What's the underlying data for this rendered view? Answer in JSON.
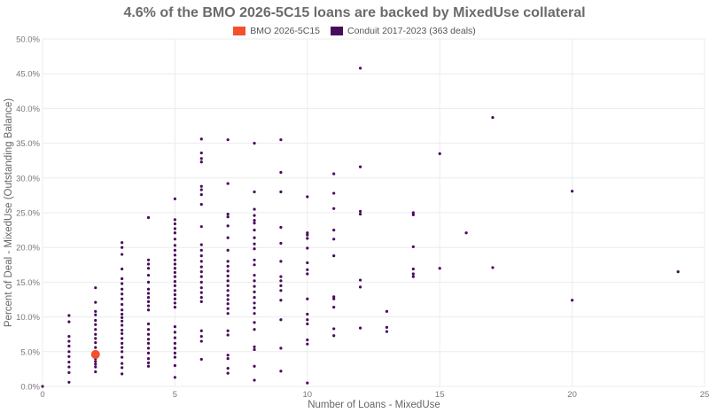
{
  "chart_data": {
    "type": "scatter",
    "title": "4.6% of the BMO 2026-5C15 loans are backed by MixedUse collateral",
    "xlabel": "Number of Loans - MixedUse",
    "ylabel": "Percent of Deal - MixedUse (Outstanding Balance)",
    "xlim": [
      0,
      25
    ],
    "ylim": [
      0,
      50
    ],
    "x_ticks": [
      0,
      5,
      10,
      15,
      20,
      25
    ],
    "x_tick_labels": [
      "0",
      "5",
      "10",
      "15",
      "20",
      "25"
    ],
    "y_ticks": [
      0,
      5,
      10,
      15,
      20,
      25,
      30,
      35,
      40,
      45,
      50
    ],
    "y_tick_labels": [
      "0.0%",
      "5.0%",
      "10.0%",
      "15.0%",
      "20.0%",
      "25.0%",
      "30.0%",
      "35.0%",
      "40.0%",
      "45.0%",
      "50.0%"
    ],
    "grid": true,
    "legend_position": "top-center",
    "series": [
      {
        "name": "BMO 2026-5C15",
        "color": "#f4502e",
        "points": [
          [
            2,
            4.6
          ]
        ]
      },
      {
        "name": "Conduit 2017-2023 (363 deals)",
        "color": "#4a0a5c",
        "points": [
          [
            0,
            0
          ],
          [
            1,
            0.6
          ],
          [
            1,
            2.0
          ],
          [
            1,
            2.8
          ],
          [
            1,
            3.5
          ],
          [
            1,
            4.3
          ],
          [
            1,
            5.0
          ],
          [
            1,
            5.8
          ],
          [
            1,
            6.5
          ],
          [
            1,
            7.2
          ],
          [
            1,
            9.3
          ],
          [
            1,
            10.2
          ],
          [
            2,
            2.1
          ],
          [
            2,
            2.8
          ],
          [
            2,
            3.2
          ],
          [
            2,
            3.6
          ],
          [
            2,
            4.0
          ],
          [
            2,
            5.0
          ],
          [
            2,
            5.6
          ],
          [
            2,
            6.3
          ],
          [
            2,
            6.9
          ],
          [
            2,
            7.5
          ],
          [
            2,
            8.2
          ],
          [
            2,
            8.9
          ],
          [
            2,
            9.5
          ],
          [
            2,
            10.3
          ],
          [
            2,
            10.8
          ],
          [
            2,
            12.1
          ],
          [
            2,
            14.2
          ],
          [
            3,
            1.8
          ],
          [
            3,
            2.7
          ],
          [
            3,
            3.3
          ],
          [
            3,
            4.2
          ],
          [
            3,
            5.0
          ],
          [
            3,
            5.6
          ],
          [
            3,
            6.2
          ],
          [
            3,
            6.9
          ],
          [
            3,
            7.6
          ],
          [
            3,
            8.1
          ],
          [
            3,
            8.8
          ],
          [
            3,
            9.4
          ],
          [
            3,
            9.9
          ],
          [
            3,
            10.4
          ],
          [
            3,
            11.0
          ],
          [
            3,
            11.8
          ],
          [
            3,
            12.6
          ],
          [
            3,
            13.3
          ],
          [
            3,
            14.0
          ],
          [
            3,
            14.8
          ],
          [
            3,
            15.5
          ],
          [
            3,
            16.9
          ],
          [
            3,
            19.0
          ],
          [
            3,
            20.0
          ],
          [
            3,
            20.7
          ],
          [
            4,
            2.9
          ],
          [
            4,
            3.4
          ],
          [
            4,
            4.0
          ],
          [
            4,
            4.8
          ],
          [
            4,
            5.5
          ],
          [
            4,
            6.2
          ],
          [
            4,
            6.8
          ],
          [
            4,
            7.5
          ],
          [
            4,
            8.2
          ],
          [
            4,
            9.0
          ],
          [
            4,
            11.0
          ],
          [
            4,
            11.6
          ],
          [
            4,
            12.2
          ],
          [
            4,
            12.8
          ],
          [
            4,
            13.4
          ],
          [
            4,
            14.0
          ],
          [
            4,
            15.0
          ],
          [
            4,
            16.0
          ],
          [
            4,
            17.0
          ],
          [
            4,
            17.6
          ],
          [
            4,
            18.2
          ],
          [
            4,
            24.3
          ],
          [
            5,
            1.3
          ],
          [
            5,
            3.0
          ],
          [
            5,
            4.2
          ],
          [
            5,
            4.8
          ],
          [
            5,
            5.5
          ],
          [
            5,
            6.2
          ],
          [
            5,
            7.0
          ],
          [
            5,
            7.8
          ],
          [
            5,
            8.6
          ],
          [
            5,
            11.4
          ],
          [
            5,
            12.0
          ],
          [
            5,
            12.6
          ],
          [
            5,
            13.2
          ],
          [
            5,
            13.8
          ],
          [
            5,
            14.5
          ],
          [
            5,
            15.1
          ],
          [
            5,
            15.8
          ],
          [
            5,
            16.4
          ],
          [
            5,
            17.0
          ],
          [
            5,
            17.6
          ],
          [
            5,
            18.2
          ],
          [
            5,
            18.9
          ],
          [
            5,
            19.6
          ],
          [
            5,
            20.3
          ],
          [
            5,
            21.2
          ],
          [
            5,
            22.1
          ],
          [
            5,
            22.7
          ],
          [
            5,
            23.4
          ],
          [
            5,
            24.0
          ],
          [
            5,
            27.0
          ],
          [
            6,
            3.9
          ],
          [
            6,
            6.5
          ],
          [
            6,
            7.2
          ],
          [
            6,
            8.0
          ],
          [
            6,
            12.2
          ],
          [
            6,
            12.8
          ],
          [
            6,
            13.5
          ],
          [
            6,
            14.2
          ],
          [
            6,
            15.0
          ],
          [
            6,
            15.8
          ],
          [
            6,
            16.5
          ],
          [
            6,
            17.2
          ],
          [
            6,
            18.0
          ],
          [
            6,
            18.8
          ],
          [
            6,
            19.6
          ],
          [
            6,
            20.4
          ],
          [
            6,
            23.0
          ],
          [
            6,
            26.2
          ],
          [
            6,
            27.6
          ],
          [
            6,
            28.3
          ],
          [
            6,
            28.8
          ],
          [
            6,
            32.3
          ],
          [
            6,
            32.8
          ],
          [
            6,
            33.6
          ],
          [
            6,
            35.6
          ],
          [
            7,
            1.9
          ],
          [
            7,
            2.6
          ],
          [
            7,
            4.0
          ],
          [
            7,
            4.5
          ],
          [
            7,
            7.4
          ],
          [
            7,
            8.0
          ],
          [
            7,
            10.5
          ],
          [
            7,
            11.2
          ],
          [
            7,
            11.9
          ],
          [
            7,
            12.5
          ],
          [
            7,
            13.1
          ],
          [
            7,
            13.8
          ],
          [
            7,
            14.5
          ],
          [
            7,
            15.2
          ],
          [
            7,
            15.9
          ],
          [
            7,
            16.6
          ],
          [
            7,
            17.3
          ],
          [
            7,
            18.0
          ],
          [
            7,
            19.6
          ],
          [
            7,
            21.4
          ],
          [
            7,
            23.1
          ],
          [
            7,
            24.4
          ],
          [
            7,
            24.8
          ],
          [
            7,
            29.2
          ],
          [
            7,
            35.5
          ],
          [
            8,
            0.9
          ],
          [
            8,
            2.9
          ],
          [
            8,
            5.3
          ],
          [
            8,
            5.7
          ],
          [
            8,
            8.2
          ],
          [
            8,
            9.2
          ],
          [
            8,
            10.5
          ],
          [
            8,
            11.3
          ],
          [
            8,
            12.0
          ],
          [
            8,
            12.8
          ],
          [
            8,
            13.6
          ],
          [
            8,
            14.4
          ],
          [
            8,
            15.2
          ],
          [
            8,
            16.0
          ],
          [
            8,
            17.5
          ],
          [
            8,
            18.2
          ],
          [
            8,
            19.8
          ],
          [
            8,
            20.5
          ],
          [
            8,
            21.4
          ],
          [
            8,
            22.5
          ],
          [
            8,
            23.5
          ],
          [
            8,
            23.9
          ],
          [
            8,
            24.6
          ],
          [
            8,
            25.5
          ],
          [
            8,
            28.0
          ],
          [
            8,
            35.0
          ],
          [
            9,
            2.2
          ],
          [
            9,
            5.5
          ],
          [
            9,
            9.6
          ],
          [
            9,
            12.4
          ],
          [
            9,
            13.8
          ],
          [
            9,
            14.5
          ],
          [
            9,
            15.2
          ],
          [
            9,
            15.8
          ],
          [
            9,
            18.0
          ],
          [
            9,
            20.6
          ],
          [
            9,
            22.9
          ],
          [
            9,
            28.0
          ],
          [
            9,
            30.8
          ],
          [
            9,
            35.5
          ],
          [
            10,
            0.5
          ],
          [
            10,
            6.1
          ],
          [
            10,
            6.7
          ],
          [
            10,
            9.0
          ],
          [
            10,
            9.6
          ],
          [
            10,
            10.4
          ],
          [
            10,
            12.6
          ],
          [
            10,
            16.2
          ],
          [
            10,
            16.8
          ],
          [
            10,
            17.8
          ],
          [
            10,
            19.9
          ],
          [
            10,
            21.3
          ],
          [
            10,
            21.8
          ],
          [
            10,
            22.1
          ],
          [
            10,
            27.3
          ],
          [
            11,
            7.3
          ],
          [
            11,
            8.3
          ],
          [
            11,
            11.4
          ],
          [
            11,
            12.6
          ],
          [
            11,
            12.9
          ],
          [
            11,
            18.8
          ],
          [
            11,
            21.2
          ],
          [
            11,
            22.5
          ],
          [
            11,
            25.6
          ],
          [
            11,
            27.8
          ],
          [
            11,
            30.6
          ],
          [
            12,
            8.4
          ],
          [
            12,
            14.3
          ],
          [
            12,
            15.3
          ],
          [
            12,
            24.8
          ],
          [
            12,
            25.2
          ],
          [
            12,
            31.6
          ],
          [
            12,
            45.8
          ],
          [
            13,
            7.9
          ],
          [
            13,
            8.5
          ],
          [
            13,
            10.8
          ],
          [
            14,
            15.8
          ],
          [
            14,
            16.2
          ],
          [
            14,
            16.9
          ],
          [
            14,
            20.1
          ],
          [
            14,
            24.7
          ],
          [
            14,
            25.0
          ],
          [
            15,
            17.0
          ],
          [
            15,
            33.5
          ],
          [
            16,
            22.1
          ],
          [
            17,
            17.1
          ],
          [
            17,
            38.7
          ],
          [
            20,
            12.4
          ],
          [
            20,
            28.1
          ],
          [
            24,
            16.5
          ]
        ]
      }
    ]
  }
}
